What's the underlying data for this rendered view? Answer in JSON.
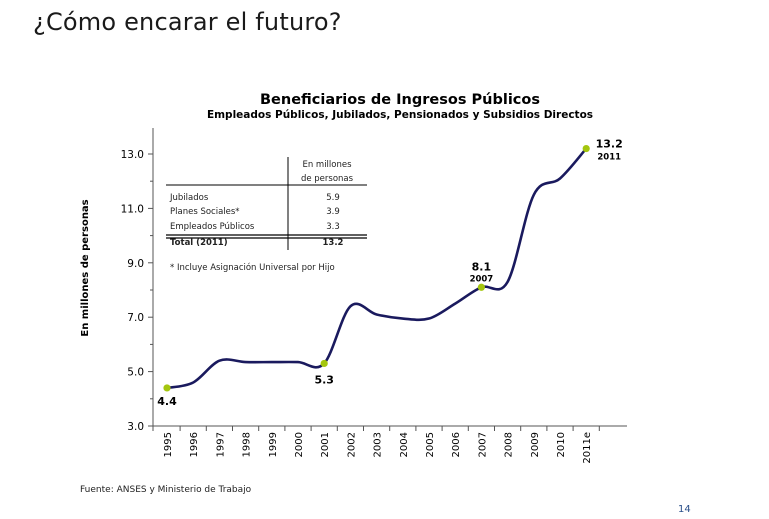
{
  "slide": {
    "title": "¿Cómo encarar el futuro?",
    "source": "Fuente: ANSES y Ministerio de Trabajo",
    "page_number": "14"
  },
  "colors": {
    "line": "#1a1a5e",
    "marker": "#a4c60e",
    "axis": "#555555"
  },
  "chart_data": {
    "type": "line",
    "title": "Beneficiarios de Ingresos Públicos",
    "subtitle": "Empleados Públicos, Jubilados, Pensionados y Subsidios Directos",
    "xlabel": "",
    "ylabel": "En millones de personas",
    "categories": [
      "1995",
      "1996",
      "1997",
      "1998",
      "1999",
      "2000",
      "2001",
      "2002",
      "2003",
      "2004",
      "2005",
      "2006",
      "2007",
      "2008",
      "2009",
      "2010",
      "2011e"
    ],
    "series": [
      {
        "values": [
          4.4,
          4.6,
          5.4,
          5.35,
          5.35,
          5.35,
          5.3,
          7.4,
          7.1,
          6.95,
          6.95,
          7.5,
          8.1,
          8.3,
          11.5,
          12.1,
          13.2
        ]
      }
    ],
    "ylim": [
      3.0,
      14.0
    ],
    "yticks": [
      "3.0",
      "5.0",
      "7.0",
      "9.0",
      "11.0",
      "13.0"
    ],
    "yticks_values": [
      3,
      5,
      7,
      9,
      11,
      13
    ],
    "grid": false,
    "highlights": [
      {
        "index": 0,
        "label": "4.4",
        "year": ""
      },
      {
        "index": 6,
        "label": "5.3",
        "year": ""
      },
      {
        "index": 12,
        "label": "8.1",
        "year": "2007"
      },
      {
        "index": 16,
        "label": "13.2",
        "year": "2011"
      }
    ],
    "table": {
      "header": [
        "En millones",
        "de personas"
      ],
      "rows": [
        {
          "label": "Jubilados",
          "value": "5.9"
        },
        {
          "label": "Planes Sociales*",
          "value": "3.9"
        },
        {
          "label": "Empleados Públicos",
          "value": "3.3"
        }
      ],
      "total": {
        "label": "Total (2011)",
        "value": "13.2"
      },
      "note": "* Incluye Asignación Universal por Hijo"
    }
  }
}
